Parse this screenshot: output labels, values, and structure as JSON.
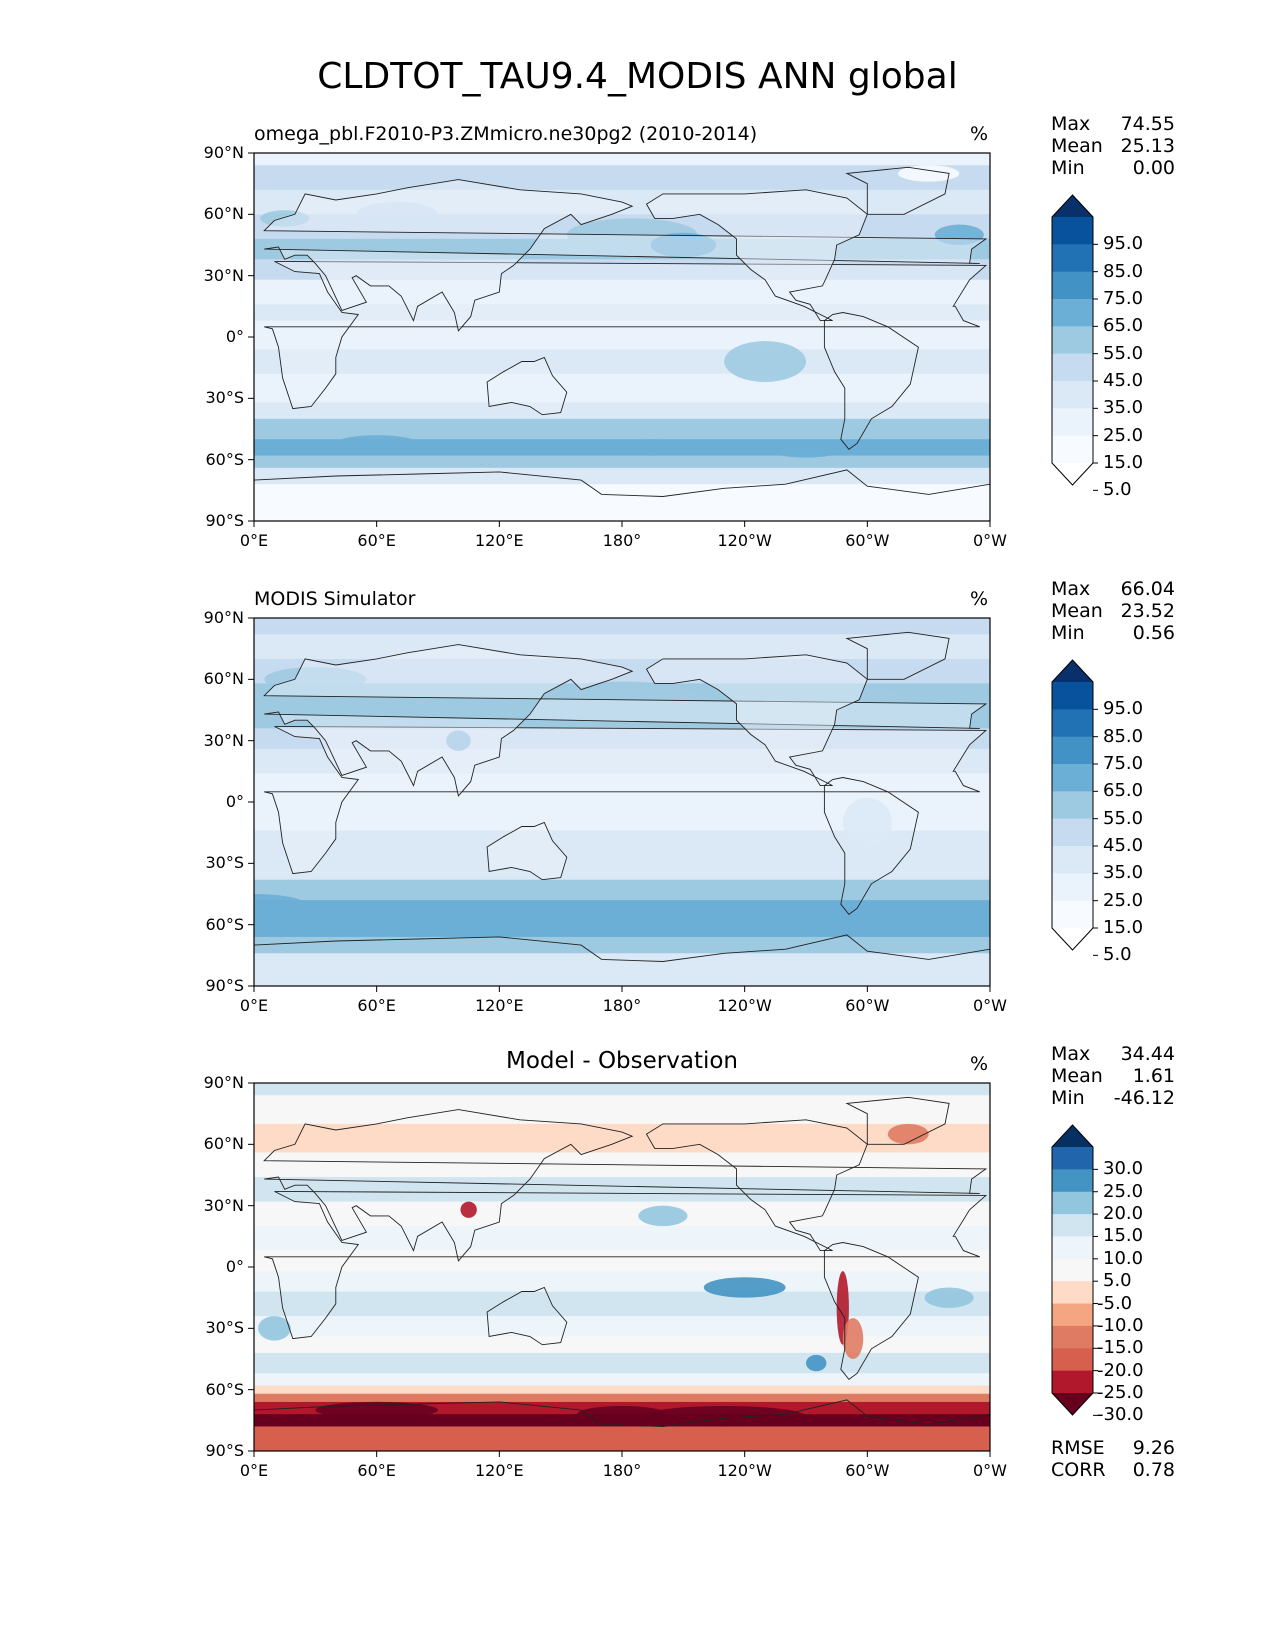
{
  "title": "CLDTOT_TAU9.4_MODIS ANN global",
  "unit": "%",
  "x_ticks": [
    "0°E",
    "60°E",
    "120°E",
    "180°",
    "120°W",
    "60°W",
    "0°W"
  ],
  "y_ticks": [
    "90°N",
    "60°N",
    "30°N",
    "0°",
    "30°S",
    "60°S",
    "90°S"
  ],
  "panels": [
    {
      "title": "omega_pbl.F2010-P3.ZMmicro.ne30pg2 (2010-2014)",
      "stats": {
        "max_label": "Max",
        "max": "74.55",
        "mean_label": "Mean",
        "mean": "25.13",
        "min_label": "Min",
        "min": "0.00"
      },
      "colorbar": [
        "95.0",
        "85.0",
        "75.0",
        "65.0",
        "55.0",
        "45.0",
        "35.0",
        "25.0",
        "15.0",
        "5.0"
      ],
      "colors": [
        "#08306b",
        "#08519c",
        "#2171b5",
        "#4292c6",
        "#6baed6",
        "#9ecae1",
        "#c6dbef",
        "#dbe9f6",
        "#eaf2fb",
        "#f7fbff",
        "#ffffff"
      ]
    },
    {
      "title": "MODIS Simulator",
      "stats": {
        "max_label": "Max",
        "max": "66.04",
        "mean_label": "Mean",
        "mean": "23.52",
        "min_label": "Min",
        "min": "0.56"
      },
      "colorbar": [
        "95.0",
        "85.0",
        "75.0",
        "65.0",
        "55.0",
        "45.0",
        "35.0",
        "25.0",
        "15.0",
        "5.0"
      ],
      "colors": [
        "#08306b",
        "#08519c",
        "#2171b5",
        "#4292c6",
        "#6baed6",
        "#9ecae1",
        "#c6dbef",
        "#dbe9f6",
        "#eaf2fb",
        "#f7fbff",
        "#ffffff"
      ]
    },
    {
      "title": "Model - Observation",
      "stats": {
        "max_label": "Max",
        "max": "34.44",
        "mean_label": "Mean",
        "mean": "1.61",
        "min_label": "Min",
        "min": "-46.12"
      },
      "colorbar": [
        "30.0",
        "25.0",
        "20.0",
        "15.0",
        "10.0",
        "5.0",
        "-5.0",
        "-10.0",
        "-15.0",
        "-20.0",
        "-25.0",
        "-30.0"
      ],
      "colors": [
        "#053061",
        "#2166ac",
        "#4393c3",
        "#92c5de",
        "#d1e5f0",
        "#eef5fa",
        "#f7f7f7",
        "#fddbc7",
        "#f4a582",
        "#e07b63",
        "#d6604d",
        "#b2182b",
        "#67001f"
      ],
      "metrics": {
        "rmse_label": "RMSE",
        "rmse": "9.26",
        "corr_label": "CORR",
        "corr": "0.78"
      }
    }
  ]
}
